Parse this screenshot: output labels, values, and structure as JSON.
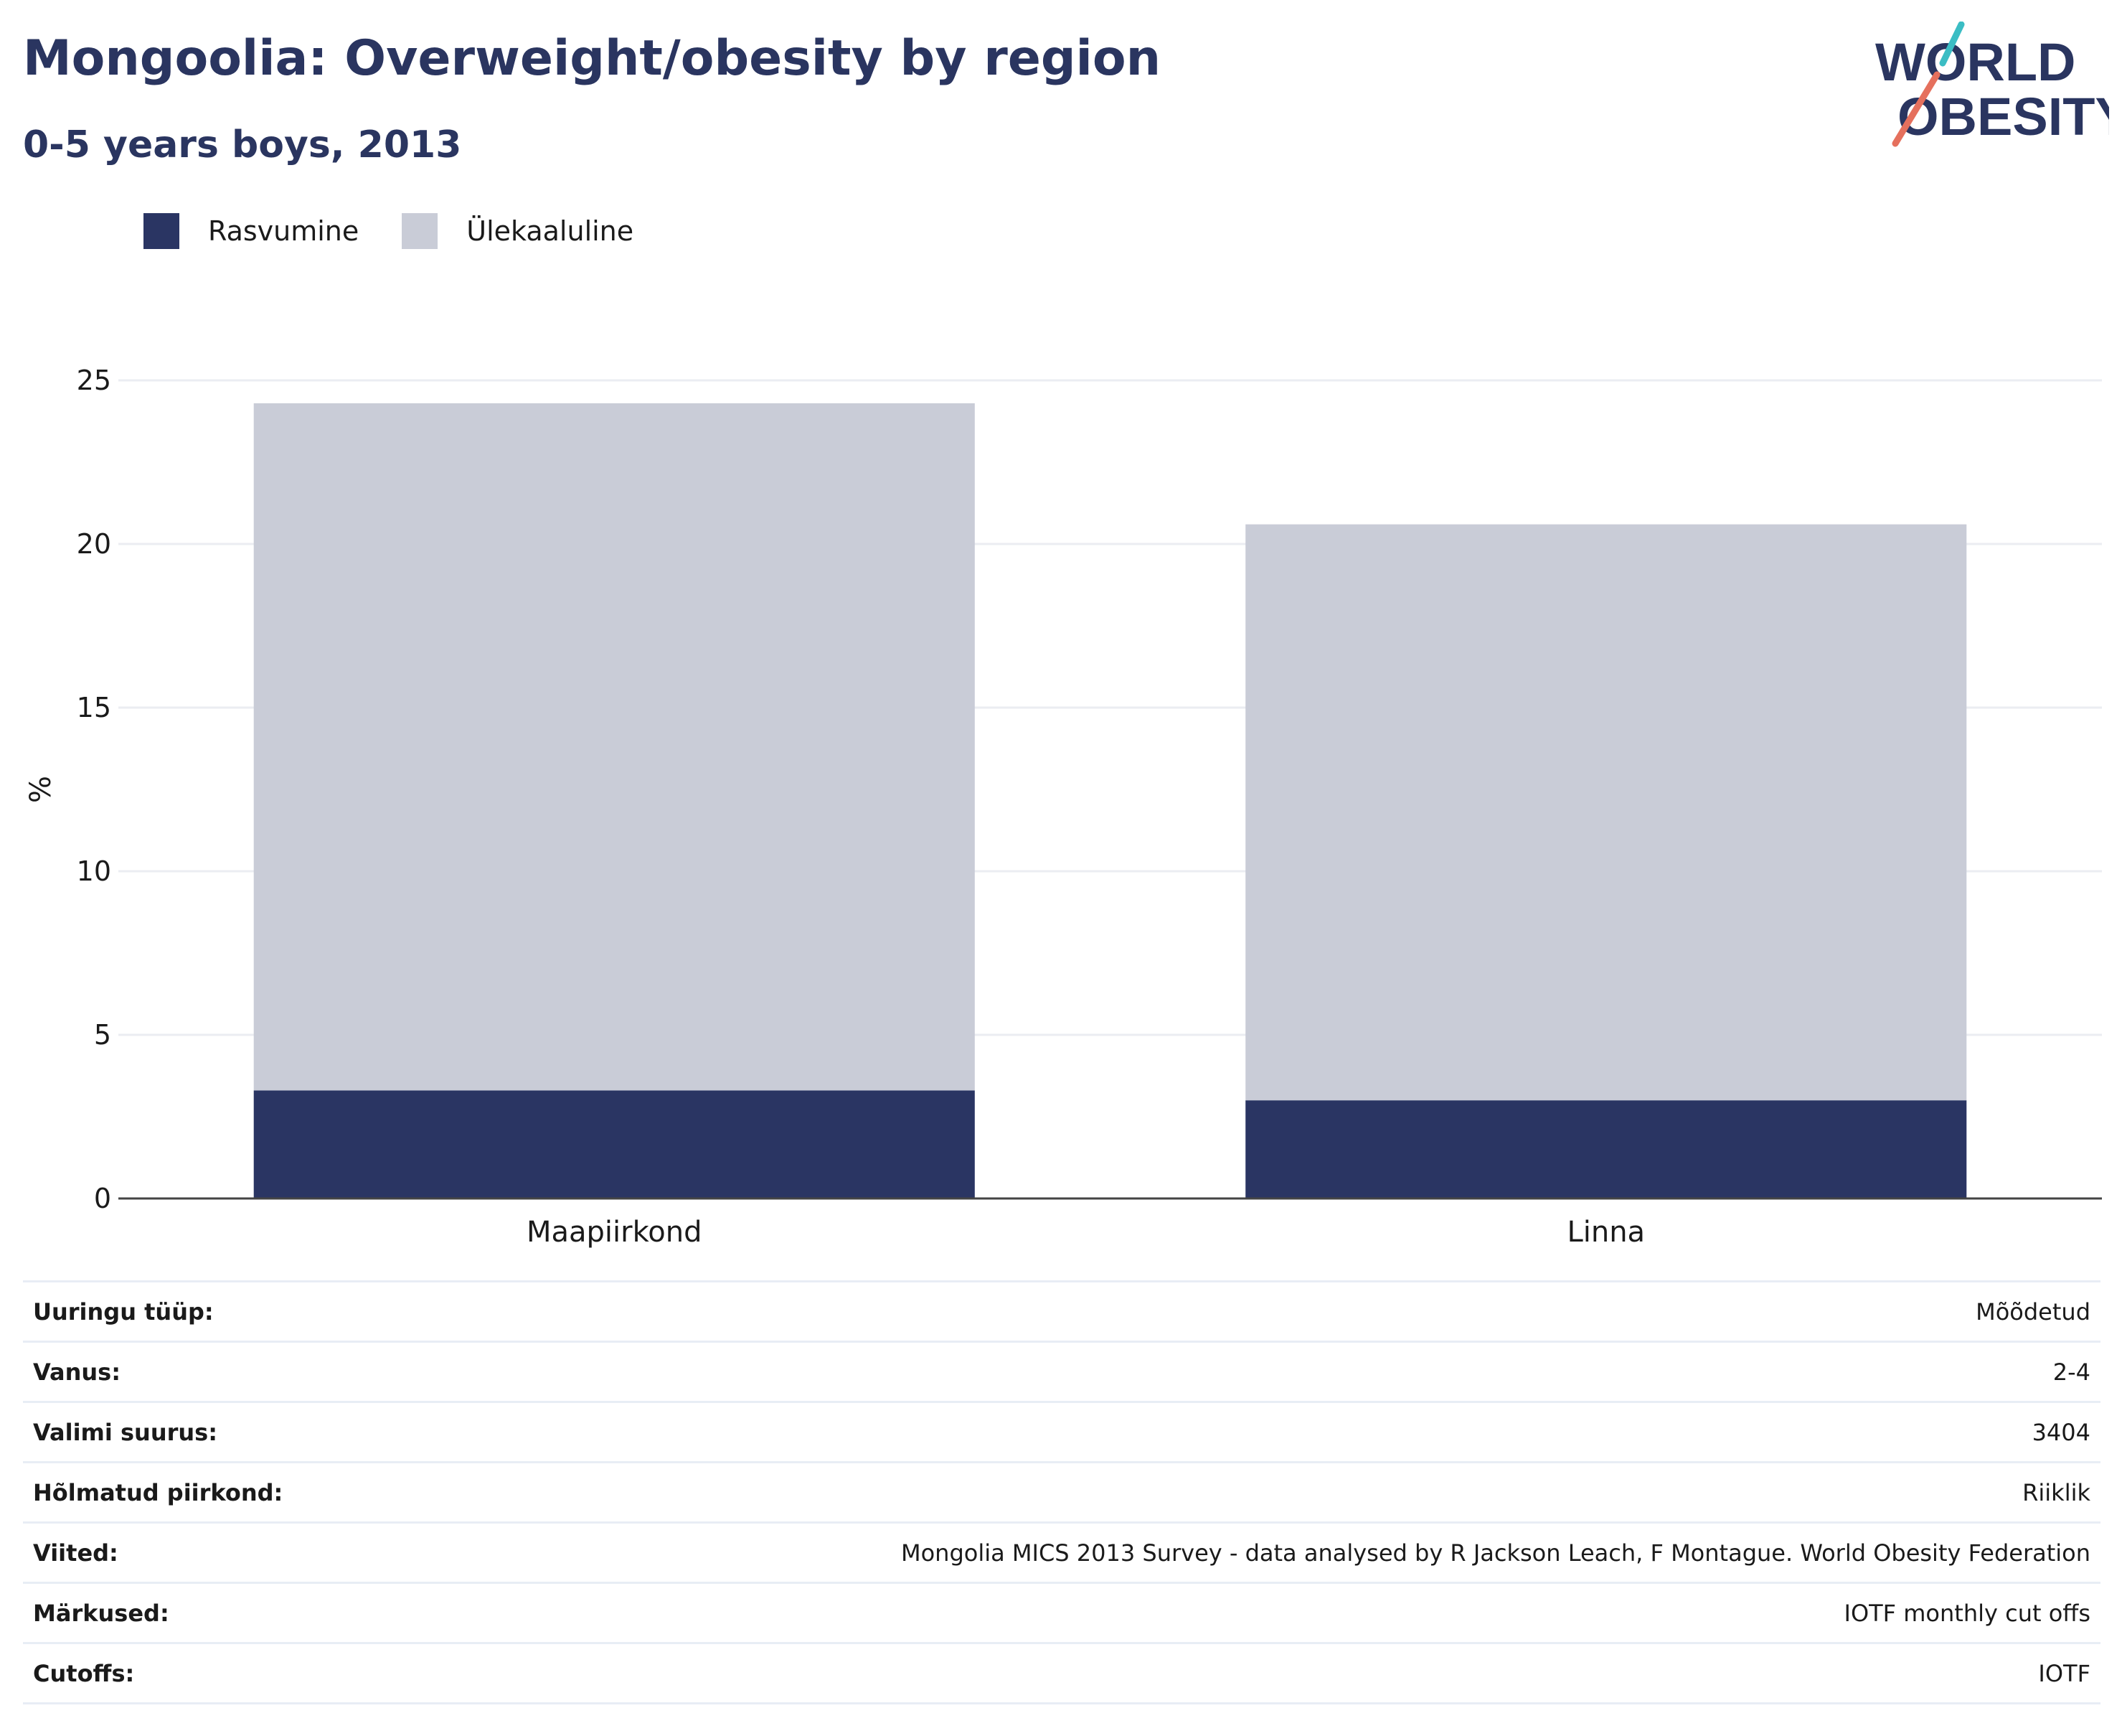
{
  "header": {
    "title": "Mongoolia: Overweight/obesity by region",
    "subtitle": "0-5 years boys, 2013",
    "logo_line1": "WORLD",
    "logo_line2": "OBESITY"
  },
  "legend": [
    {
      "label": "Rasvumine",
      "color": "#2a3563"
    },
    {
      "label": "Ülekaaluline",
      "color": "#c9ccd7"
    }
  ],
  "chart_data": {
    "type": "bar",
    "stacked": true,
    "categories": [
      "Maapiirkond",
      "Linna"
    ],
    "series": [
      {
        "name": "Rasvumine",
        "values": [
          3.3,
          3.0
        ],
        "color": "#2a3563"
      },
      {
        "name": "Ülekaaluline",
        "values": [
          21.0,
          17.6
        ],
        "color": "#c9ccd7"
      }
    ],
    "title": "Mongoolia: Overweight/obesity by region",
    "subtitle": "0-5 years boys, 2013",
    "xlabel": "",
    "ylabel": "%",
    "ylim": [
      0,
      25
    ],
    "yticks": [
      0,
      5,
      10,
      15,
      20,
      25
    ],
    "grid": true,
    "legend_position": "top-left"
  },
  "info_table": [
    {
      "key": "Uuringu tüüp:",
      "value": "Mõõdetud"
    },
    {
      "key": "Vanus:",
      "value": "2-4"
    },
    {
      "key": "Valimi suurus:",
      "value": "3404"
    },
    {
      "key": "Hõlmatud piirkond:",
      "value": "Riiklik"
    },
    {
      "key": "Viited:",
      "value": "Mongolia MICS 2013 Survey - data analysed by R Jackson Leach, F Montague. World Obesity Federation"
    },
    {
      "key": "Märkused:",
      "value": "IOTF monthly cut offs"
    },
    {
      "key": "Cutoffs:",
      "value": "IOTF"
    }
  ],
  "colors": {
    "brand_navy": "#2a3560",
    "logo_teal": "#3bbdc4",
    "logo_coral": "#e5705d"
  }
}
